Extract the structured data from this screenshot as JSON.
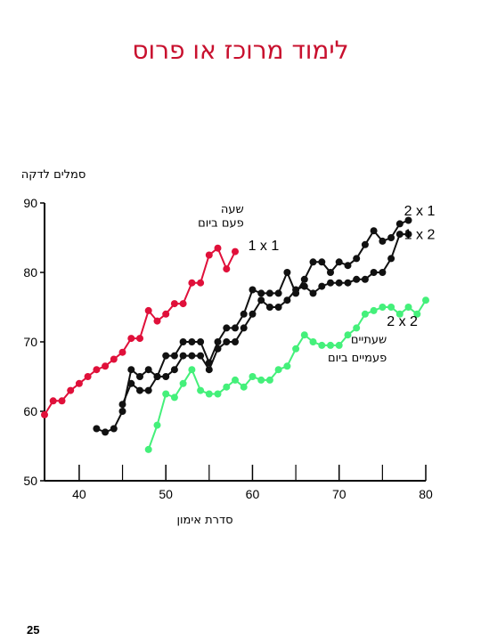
{
  "page": {
    "title": "לימוד מרוכז או פרוס",
    "page_number": "25"
  },
  "chart_data": {
    "type": "line",
    "title": "",
    "xlabel": "סדרת אימון",
    "ylabel": "סמלים לדקה",
    "xlim": [
      36,
      80
    ],
    "ylim": [
      50,
      90
    ],
    "x_ticks": [
      40,
      50,
      60,
      70,
      80
    ],
    "y_ticks": [
      50,
      60,
      70,
      80,
      90
    ],
    "annotations": [
      {
        "text": "שעה",
        "x": 59,
        "y": 88.6
      },
      {
        "text": "פעם ביום",
        "x": 59,
        "y": 86.6
      },
      {
        "text": "שעתיים",
        "x": 75.5,
        "y": 69.8
      },
      {
        "text": "פעמיים ביום",
        "x": 75.5,
        "y": 67.2
      }
    ],
    "series": [
      {
        "name": "1 x 1",
        "color": "#e0103a",
        "label_pos": {
          "x": 59.5,
          "y": 83.2
        },
        "x": [
          36,
          37,
          38,
          39,
          40,
          41,
          42,
          43,
          44,
          45,
          46,
          47,
          48,
          49,
          50,
          51,
          52,
          53,
          54,
          55,
          56,
          57,
          58
        ],
        "y": [
          59.5,
          61.5,
          61.5,
          63,
          64,
          65,
          66,
          66.5,
          67.5,
          68.5,
          70.5,
          70.5,
          74.5,
          73,
          74,
          75.5,
          75.5,
          78.5,
          78.5,
          82.5,
          83.5,
          80.5,
          83
        ]
      },
      {
        "name": "2 x 1",
        "color": "#111111",
        "label_pos": {
          "x": 77.5,
          "y": 88.2
        },
        "x": [
          42,
          43,
          44,
          45,
          46,
          47,
          48,
          49,
          50,
          51,
          52,
          53,
          54,
          55,
          56,
          57,
          58,
          59,
          60,
          61,
          62,
          63,
          64,
          65,
          66,
          67,
          68,
          69,
          70,
          71,
          72,
          73,
          74,
          75,
          76,
          77,
          78
        ],
        "y": [
          57.5,
          57,
          57.5,
          60,
          66,
          65,
          66,
          65,
          68,
          68,
          70,
          70,
          70,
          67,
          70,
          72,
          72,
          74,
          77.5,
          77,
          77,
          77,
          80,
          77,
          79,
          81.5,
          81.5,
          80,
          81.5,
          81,
          82,
          84,
          86,
          84.5,
          85,
          87,
          87.5
        ]
      },
      {
        "name": "1 x 2",
        "color": "#111111",
        "label_pos": {
          "x": 77.5,
          "y": 84.8
        },
        "x": [
          45,
          46,
          47,
          48,
          49,
          50,
          51,
          52,
          53,
          54,
          55,
          56,
          57,
          58,
          59,
          60,
          61,
          62,
          63,
          64,
          65,
          66,
          67,
          68,
          69,
          70,
          71,
          72,
          73,
          74,
          75,
          76,
          77,
          78
        ],
        "y": [
          61,
          64,
          63,
          63,
          65,
          65,
          66,
          68,
          68,
          68,
          66,
          69,
          70,
          70,
          72,
          74,
          76,
          75,
          75,
          76,
          77.5,
          78,
          77,
          78,
          78.5,
          78.5,
          78.5,
          79,
          79,
          80,
          80,
          82,
          85.5,
          85.5
        ]
      },
      {
        "name": "2 x 2",
        "color": "#44f07a",
        "label_pos": {
          "x": 75.5,
          "y": 72.3
        },
        "x": [
          48,
          49,
          50,
          51,
          52,
          53,
          54,
          55,
          56,
          57,
          58,
          59,
          60,
          61,
          62,
          63,
          64,
          65,
          66,
          67,
          68,
          69,
          70,
          71,
          72,
          73,
          74,
          75,
          76,
          77,
          78,
          79,
          80
        ],
        "y": [
          54.5,
          58,
          62.5,
          62,
          64,
          66,
          63,
          62.5,
          62.5,
          63.5,
          64.5,
          63.5,
          65,
          64.5,
          64.5,
          66,
          66.5,
          69,
          71,
          70,
          69.5,
          69.5,
          69.5,
          71,
          72,
          74,
          74.5,
          75,
          75,
          74,
          75,
          74,
          76
        ]
      }
    ]
  }
}
